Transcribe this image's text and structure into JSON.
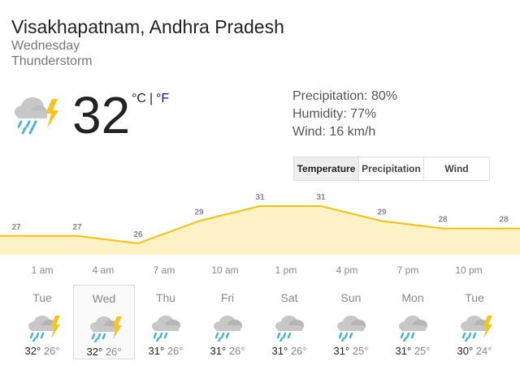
{
  "header": {
    "location": "Visakhapatnam, Andhra Pradesh",
    "day": "Wednesday",
    "condition": "Thunderstorm"
  },
  "current": {
    "temperature": 32,
    "unit_c": "°C",
    "separator": "|",
    "unit_f": "°F"
  },
  "details": [
    "Precipitation: 80%",
    "Humidity: 77%",
    "Wind: 16 km/h"
  ],
  "tabs": {
    "items": [
      "Temperature",
      "Precipitation",
      "Wind"
    ],
    "selected": 0
  },
  "chart_data": {
    "type": "area",
    "categories": [
      "1 am",
      "4 am",
      "7 am",
      "10 am",
      "1 pm",
      "4 pm",
      "7 pm",
      "10 pm",
      null
    ],
    "values": [
      27,
      27,
      26,
      29,
      31,
      31,
      29,
      28,
      28
    ],
    "color": "#f4c20d",
    "fill": "#fdf1c6"
  },
  "forecast": {
    "selected": 1,
    "days": [
      {
        "day": "Tue",
        "high": "32°",
        "low": "26°"
      },
      {
        "day": "Wed",
        "high": "32°",
        "low": "26°"
      },
      {
        "day": "Thu",
        "high": "31°",
        "low": "26°"
      },
      {
        "day": "Fri",
        "high": "31°",
        "low": "26°"
      },
      {
        "day": "Sat",
        "high": "31°",
        "low": "26°"
      },
      {
        "day": "Sun",
        "high": "31°",
        "low": "25°"
      },
      {
        "day": "Mon",
        "high": "31°",
        "low": "25°"
      },
      {
        "day": "Tue",
        "high": "30°",
        "low": "24°"
      }
    ]
  }
}
